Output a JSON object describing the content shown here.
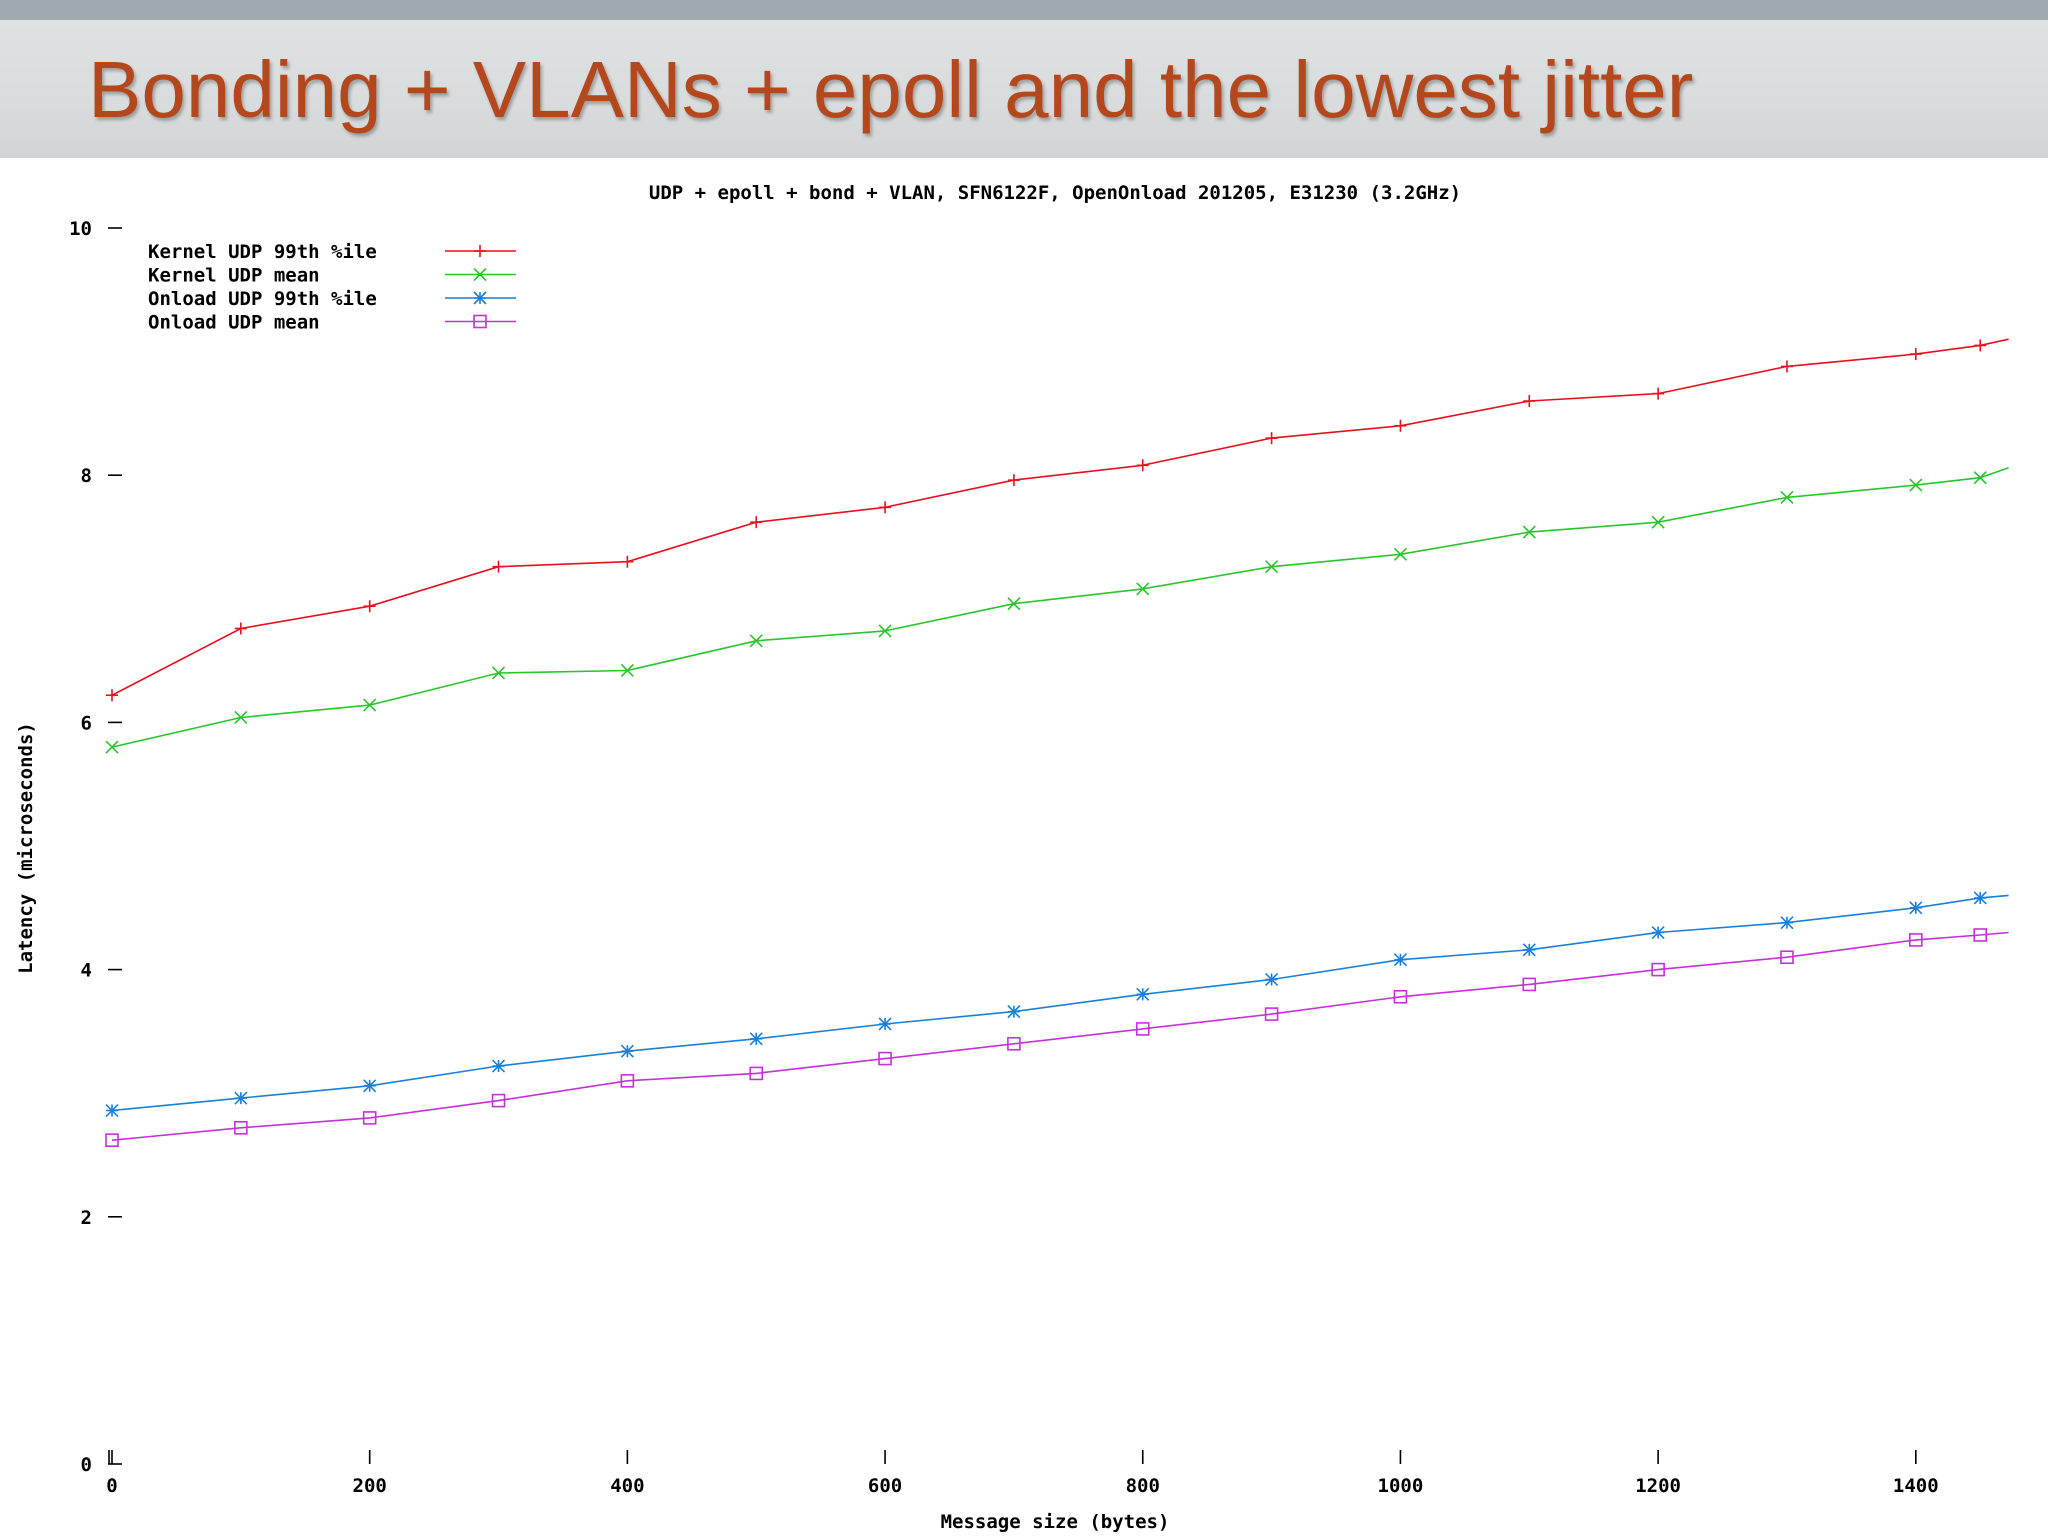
{
  "slide": {
    "title": "Bonding + VLANs + epoll and the lowest jitter",
    "title_color": "#b5471d",
    "band_color": "#dcdfdf"
  },
  "chart_data": {
    "type": "line",
    "title": "UDP + epoll + bond + VLAN, SFN6122F, OpenOnload 201205, E31230 (3.2GHz)",
    "xlabel": "Message size (bytes)",
    "ylabel": "Latency (microseconds)",
    "xlim": [
      0,
      1470
    ],
    "ylim": [
      0,
      10
    ],
    "x_ticks": [
      0,
      200,
      400,
      600,
      800,
      1000,
      1200,
      1400
    ],
    "y_ticks": [
      0,
      2,
      4,
      6,
      8,
      10
    ],
    "grid": false,
    "legend_position": "top-left",
    "x": [
      0,
      100,
      200,
      300,
      400,
      500,
      600,
      700,
      800,
      900,
      1000,
      1100,
      1200,
      1300,
      1400,
      1450,
      1472
    ],
    "series": [
      {
        "name": "Kernel UDP 99th %ile",
        "color": "#e8101e",
        "marker": "plus",
        "values": [
          6.22,
          6.76,
          6.94,
          7.26,
          7.3,
          7.62,
          7.74,
          7.96,
          8.08,
          8.3,
          8.4,
          8.6,
          8.66,
          8.88,
          8.98,
          9.05,
          9.1
        ]
      },
      {
        "name": "Kernel UDP mean",
        "color": "#29c52b",
        "marker": "cross",
        "values": [
          5.8,
          6.04,
          6.14,
          6.4,
          6.42,
          6.66,
          6.74,
          6.96,
          7.08,
          7.26,
          7.36,
          7.54,
          7.62,
          7.82,
          7.92,
          7.98,
          8.06
        ]
      },
      {
        "name": "Onload UDP 99th %ile",
        "color": "#1a7fd8",
        "marker": "star",
        "values": [
          2.86,
          2.96,
          3.06,
          3.22,
          3.34,
          3.44,
          3.56,
          3.66,
          3.8,
          3.92,
          4.08,
          4.16,
          4.3,
          4.38,
          4.5,
          4.58,
          4.6
        ]
      },
      {
        "name": "Onload UDP mean",
        "color": "#c530d9",
        "marker": "box",
        "values": [
          2.62,
          2.72,
          2.8,
          2.94,
          3.1,
          3.16,
          3.28,
          3.4,
          3.52,
          3.64,
          3.78,
          3.88,
          4.0,
          4.1,
          4.24,
          4.28,
          4.3
        ]
      }
    ]
  }
}
